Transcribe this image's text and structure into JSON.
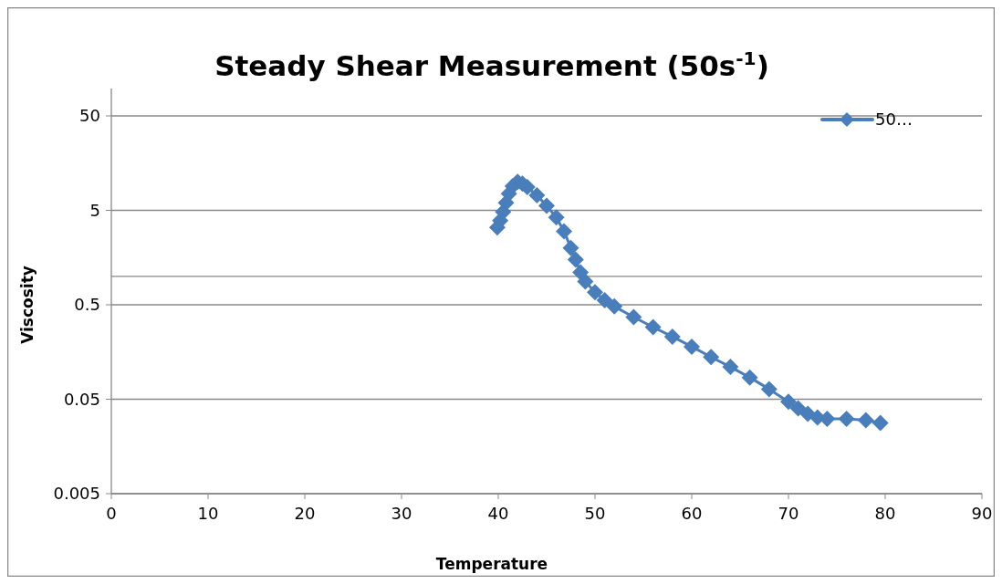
{
  "chart_data": {
    "type": "line",
    "title": "Steady Shear Measurement (50s$^{-1}$)",
    "xlabel": "Temperature",
    "ylabel": "Viscosity",
    "xlim": [
      0,
      90
    ],
    "xticks": [
      0,
      10,
      20,
      30,
      40,
      50,
      60,
      70,
      80,
      90
    ],
    "ylim": [
      0.005,
      50
    ],
    "yticks": [
      0.005,
      0.05,
      0.5,
      5,
      50
    ],
    "log": "y",
    "grid": "y",
    "legend": "top right",
    "marker": "diamond",
    "ref_lines": [
      {
        "axis": "y",
        "value": 1,
        "label": null
      }
    ],
    "series": [
      {
        "name": "50…",
        "color": "#4a7ebb",
        "x": [
          39.9,
          40.2,
          40.5,
          40.8,
          41.1,
          41.5,
          42.0,
          42.5,
          43.0,
          44.0,
          45.0,
          46.0,
          46.8,
          47.5,
          48.0,
          48.5,
          49.0,
          50.0,
          51.0,
          52.0,
          54.0,
          56.0,
          58.0,
          60.0,
          62.0,
          64.0,
          66.0,
          68.0,
          70.0,
          71.0,
          72.0,
          73.0,
          74.0,
          76.0,
          78.0,
          79.5
        ],
        "values": [
          3.3,
          3.9,
          4.8,
          6.0,
          7.5,
          9.0,
          10.0,
          9.6,
          8.8,
          7.2,
          5.6,
          4.2,
          3.0,
          2.0,
          1.5,
          1.1,
          0.88,
          0.68,
          0.56,
          0.48,
          0.37,
          0.29,
          0.23,
          0.18,
          0.14,
          0.11,
          0.085,
          0.064,
          0.047,
          0.04,
          0.035,
          0.032,
          0.031,
          0.031,
          0.03,
          0.028
        ]
      }
    ]
  }
}
